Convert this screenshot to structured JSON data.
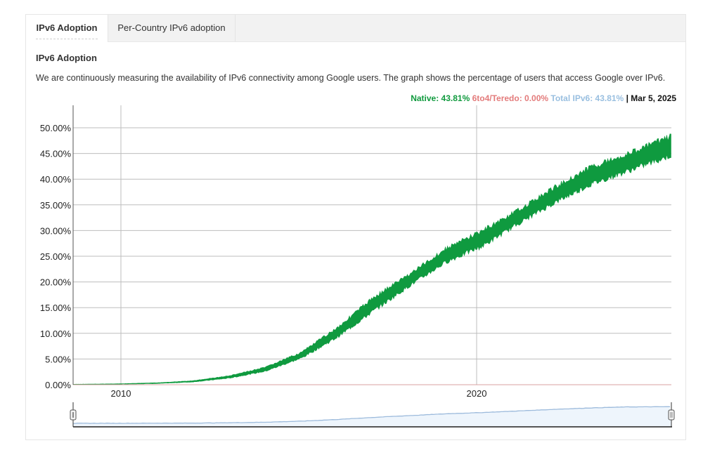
{
  "tabs": [
    {
      "label": "IPv6 Adoption",
      "active": true
    },
    {
      "label": "Per-Country IPv6 adoption",
      "active": false
    }
  ],
  "section": {
    "title": "IPv6 Adoption",
    "description": "We are continuously measuring the availability of IPv6 connectivity among Google users. The graph shows the percentage of users that access Google over IPv6."
  },
  "legend": {
    "native": "Native: 43.81%",
    "teredo": "6to4/Teredo: 0.00%",
    "total": "Total IPv6: 43.81%",
    "separator": "|",
    "date": "Mar 5, 2025"
  },
  "colors": {
    "native": "#0f9a3f",
    "teredo": "#e37b7b",
    "total": "#99bfe0",
    "grid": "#bdbdbd",
    "axis": "#555555"
  },
  "chart_data": {
    "type": "area",
    "title": "IPv6 Adoption",
    "xlabel": "",
    "ylabel": "",
    "ylim": [
      0,
      50
    ],
    "y_ticks": [
      "0.00%",
      "5.00%",
      "10.00%",
      "15.00%",
      "20.00%",
      "25.00%",
      "30.00%",
      "35.00%",
      "40.00%",
      "45.00%",
      "50.00%"
    ],
    "x_ticks": [
      "2010",
      "2020"
    ],
    "grid": true,
    "legend_position": "top-right",
    "x": [
      2008.7,
      2010,
      2011,
      2012,
      2013,
      2014,
      2015,
      2016,
      2017,
      2018,
      2019,
      2020,
      2021,
      2022,
      2023,
      2024,
      2025.2
    ],
    "series": [
      {
        "name": "Native",
        "low": [
          0.0,
          0.1,
          0.2,
          0.5,
          1.2,
          2.5,
          5.0,
          9.0,
          14.0,
          19.0,
          23.5,
          26.5,
          31.0,
          35.0,
          38.5,
          41.0,
          44.0
        ],
        "high": [
          0.1,
          0.2,
          0.4,
          0.8,
          1.8,
          3.5,
          6.5,
          11.5,
          17.5,
          22.0,
          27.0,
          30.5,
          34.5,
          39.0,
          43.0,
          45.5,
          49.0
        ]
      },
      {
        "name": "6to4/Teredo",
        "values": [
          0,
          0,
          0,
          0,
          0,
          0,
          0,
          0,
          0,
          0,
          0,
          0,
          0,
          0,
          0,
          0,
          0
        ]
      },
      {
        "name": "Total IPv6",
        "values": [
          0.05,
          0.15,
          0.3,
          0.65,
          1.5,
          3.0,
          5.75,
          10.25,
          15.75,
          20.5,
          25.25,
          28.5,
          32.75,
          37.0,
          40.75,
          43.25,
          43.81
        ]
      }
    ],
    "latest": {
      "date": "Mar 5, 2025",
      "native": 43.81,
      "teredo": 0.0,
      "total": 43.81
    },
    "navigator": {
      "type": "area",
      "range_start": 2008.7,
      "range_end": 2025.2
    }
  }
}
